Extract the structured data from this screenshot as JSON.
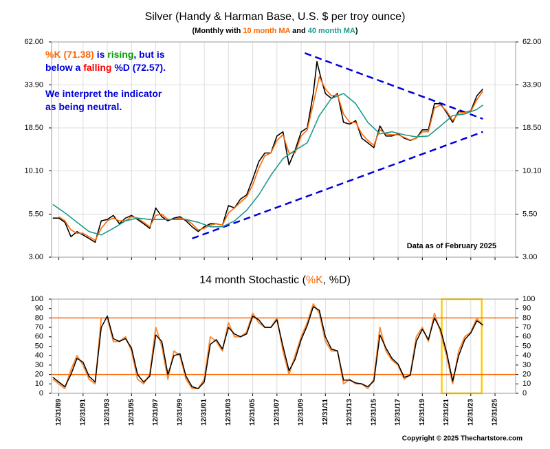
{
  "chart_data": [
    {
      "type": "line",
      "title": "Silver (Handy & Harman Base, U.S. $ per troy ounce)",
      "subtitle": [
        {
          "text": "(Monthly with ",
          "color": "#000000"
        },
        {
          "text": "10 month MA",
          "color": "#ff6600"
        },
        {
          "text": " and ",
          "color": "#000000"
        },
        {
          "text": "40 month MA",
          "color": "#1a9a8a"
        },
        {
          "text": ")",
          "color": "#000000"
        }
      ],
      "annotation_lines": [
        [
          {
            "text": "%K (71.38)",
            "color": "#ff6600"
          },
          {
            "text": " is ",
            "color": "#0000dd"
          },
          {
            "text": "rising",
            "color": "#00a000"
          },
          {
            "text": ", but is",
            "color": "#0000dd"
          }
        ],
        [
          {
            "text": "below a ",
            "color": "#0000dd"
          },
          {
            "text": "falling",
            "color": "#ff0000"
          },
          {
            "text": " %D (72.57).",
            "color": "#0000dd"
          }
        ],
        [],
        [
          {
            "text": "We interpret the indicator",
            "color": "#0000dd"
          }
        ],
        [
          {
            "text": "as being neutral.",
            "color": "#0000dd"
          }
        ]
      ],
      "note": "Data as of February 2025",
      "log_scale": true,
      "grid": true,
      "xlim": [
        1989.4,
        2027.7
      ],
      "ylim": [
        3,
        62
      ],
      "yticks": [
        {
          "value": 62,
          "label": "62.00"
        },
        {
          "value": 33.9,
          "label": "33.90"
        },
        {
          "value": 18.5,
          "label": "18.50"
        },
        {
          "value": 10.1,
          "label": "10.10"
        },
        {
          "value": 5.5,
          "label": "5.50"
        },
        {
          "value": 3,
          "label": "3.00"
        }
      ],
      "series": [
        {
          "color": "#000000",
          "width": 1.6,
          "x": [
            1989.5,
            1990,
            1990.5,
            1991,
            1991.5,
            1992,
            1992.5,
            1993,
            1993.5,
            1994,
            1994.5,
            1995,
            1995.5,
            1996,
            1996.5,
            1997,
            1997.5,
            1998,
            1998.5,
            1999,
            1999.5,
            2000,
            2000.5,
            2001,
            2001.5,
            2002,
            2002.5,
            2003,
            2003.5,
            2004,
            2004.5,
            2005,
            2005.5,
            2006,
            2006.5,
            2007,
            2007.5,
            2008,
            2008.5,
            2009,
            2009.5,
            2010,
            2010.5,
            2011,
            2011.3,
            2011.6,
            2012,
            2012.5,
            2013,
            2013.5,
            2014,
            2014.5,
            2015,
            2015.5,
            2016,
            2016.5,
            2017,
            2017.5,
            2018,
            2018.5,
            2019,
            2019.5,
            2020,
            2020.5,
            2021,
            2021.5,
            2022,
            2022.5,
            2023,
            2023.5,
            2024,
            2024.5,
            2025
          ],
          "values": [
            5.2,
            5.2,
            4.9,
            4.0,
            4.3,
            4.1,
            3.9,
            3.7,
            5.0,
            5.1,
            5.4,
            4.8,
            5.2,
            5.4,
            5.1,
            4.8,
            4.5,
            6.0,
            5.3,
            5.0,
            5.2,
            5.3,
            5.0,
            4.6,
            4.3,
            4.6,
            4.8,
            4.8,
            4.7,
            6.2,
            6.0,
            6.8,
            7.2,
            9.0,
            11.5,
            13.0,
            13.0,
            16.5,
            17.5,
            11.0,
            13.5,
            17.5,
            18.5,
            30.0,
            47.0,
            38.0,
            30.0,
            28.0,
            30.0,
            20.0,
            19.5,
            20.5,
            16.0,
            15.0,
            14.0,
            19.0,
            16.5,
            16.5,
            17.0,
            16.0,
            15.5,
            16.0,
            18.0,
            18.0,
            26.0,
            26.0,
            23.0,
            20.0,
            23.5,
            23.0,
            23.5,
            29.0,
            32.0
          ]
        },
        {
          "color": "#ff6600",
          "width": 1.6,
          "x": [
            1990,
            1990.5,
            1991,
            1991.5,
            1992,
            1992.5,
            1993,
            1993.5,
            1994,
            1994.5,
            1995,
            1995.5,
            1996,
            1996.5,
            1997,
            1997.5,
            1998,
            1998.5,
            1999,
            1999.5,
            2000,
            2000.5,
            2001,
            2001.5,
            2002,
            2002.5,
            2003,
            2003.5,
            2004,
            2004.5,
            2005,
            2005.5,
            2006,
            2006.5,
            2007,
            2007.5,
            2008,
            2008.5,
            2009,
            2009.5,
            2010,
            2010.5,
            2011,
            2011.5,
            2012,
            2012.5,
            2013,
            2013.5,
            2014,
            2014.5,
            2015,
            2015.5,
            2016,
            2016.5,
            2017,
            2017.5,
            2018,
            2018.5,
            2019,
            2019.5,
            2020,
            2020.5,
            2021,
            2021.5,
            2022,
            2022.5,
            2023,
            2023.5,
            2024,
            2024.5,
            2025
          ],
          "values": [
            5.3,
            5.0,
            4.4,
            4.2,
            4.2,
            4.0,
            3.8,
            4.5,
            5.0,
            5.2,
            5.0,
            5.0,
            5.3,
            5.2,
            4.9,
            4.6,
            5.4,
            5.5,
            5.1,
            5.1,
            5.2,
            5.1,
            4.8,
            4.4,
            4.5,
            4.7,
            4.8,
            4.7,
            5.6,
            6.0,
            6.5,
            7.0,
            8.3,
            10.5,
            12.5,
            13.0,
            15.5,
            16.8,
            13.0,
            13.0,
            16.5,
            18.0,
            26.0,
            38.0,
            32.0,
            29.0,
            29.5,
            22.5,
            20.0,
            20.0,
            17.0,
            15.5,
            14.5,
            18.0,
            17.0,
            16.8,
            16.8,
            16.2,
            15.6,
            16.0,
            17.5,
            17.5,
            24.5,
            25.5,
            23.5,
            20.5,
            22.8,
            23.0,
            23.3,
            27.5,
            31.0
          ]
        },
        {
          "color": "#1a9a8a",
          "width": 1.6,
          "x": [
            1989.5,
            1990.5,
            1991.5,
            1992.5,
            1993.5,
            1994.5,
            1995.5,
            1996.5,
            1997.5,
            1998.5,
            1999.5,
            2000.5,
            2001.5,
            2002.5,
            2003.5,
            2004.5,
            2005.5,
            2006.5,
            2007.5,
            2008.5,
            2009.5,
            2010.5,
            2011.5,
            2012.5,
            2013.5,
            2014.5,
            2015.5,
            2016.5,
            2017.5,
            2018.5,
            2019.5,
            2020.5,
            2021.5,
            2022.5,
            2023.5,
            2024.5,
            2025
          ],
          "values": [
            6.3,
            5.6,
            4.9,
            4.3,
            4.1,
            4.5,
            5.0,
            5.2,
            5.1,
            5.1,
            5.1,
            5.1,
            4.9,
            4.6,
            4.6,
            5.0,
            5.8,
            7.2,
            9.5,
            12.0,
            13.5,
            15.0,
            22.0,
            28.0,
            30.0,
            26.0,
            20.0,
            17.0,
            17.5,
            16.8,
            16.3,
            16.5,
            19.0,
            22.0,
            22.5,
            24.0,
            25.5
          ]
        }
      ],
      "trend_lines": [
        {
          "color": "#0000dd",
          "x": [
            2001,
            2025
          ],
          "values": [
            3.9,
            17.5
          ]
        },
        {
          "color": "#0000dd",
          "x": [
            2010.3,
            2025
          ],
          "values": [
            53,
            21
          ]
        }
      ]
    },
    {
      "type": "line",
      "title": [
        {
          "text": "14 month Stochastic (",
          "color": "#000000"
        },
        {
          "text": "%K",
          "color": "#ff6600"
        },
        {
          "text": ", %D)",
          "color": "#000000"
        }
      ],
      "copyright": "Copyright © 2025 Thechartstore.com",
      "grid": true,
      "xlim": [
        1989.4,
        2027.7
      ],
      "xticks": [
        {
          "value": 1990,
          "label": "12/31/89"
        },
        {
          "value": 1992,
          "label": "12/31/91"
        },
        {
          "value": 1994,
          "label": "12/31/93"
        },
        {
          "value": 1996,
          "label": "12/31/95"
        },
        {
          "value": 1998,
          "label": "12/31/97"
        },
        {
          "value": 2000,
          "label": "12/31/99"
        },
        {
          "value": 2002,
          "label": "12/31/01"
        },
        {
          "value": 2004,
          "label": "12/31/03"
        },
        {
          "value": 2006,
          "label": "12/31/05"
        },
        {
          "value": 2008,
          "label": "12/31/07"
        },
        {
          "value": 2010,
          "label": "12/31/09"
        },
        {
          "value": 2012,
          "label": "12/31/11"
        },
        {
          "value": 2014,
          "label": "12/31/13"
        },
        {
          "value": 2016,
          "label": "12/31/15"
        },
        {
          "value": 2018,
          "label": "12/31/17"
        },
        {
          "value": 2020,
          "label": "12/31/19"
        },
        {
          "value": 2022,
          "label": "12/31/21"
        },
        {
          "value": 2024,
          "label": "12/31/23"
        },
        {
          "value": 2026,
          "label": "12/31/25"
        }
      ],
      "ylim": [
        0,
        100
      ],
      "yticks": [
        0,
        10,
        20,
        30,
        40,
        50,
        60,
        70,
        80,
        90,
        100
      ],
      "ref_lines": {
        "values": [
          20,
          80
        ],
        "color": "#ff6600"
      },
      "highlight": {
        "x": [
          2021.6,
          2024.9
        ],
        "color": "#ffcc00"
      },
      "series": [
        {
          "color": "#ff8c33",
          "width": 2,
          "x": [
            1989.5,
            1990,
            1990.5,
            1991,
            1991.5,
            1992,
            1992.5,
            1993,
            1993.5,
            1994,
            1994.5,
            1995,
            1995.5,
            1996,
            1996.5,
            1997,
            1997.5,
            1998,
            1998.5,
            1999,
            1999.5,
            2000,
            2000.5,
            2001,
            2001.5,
            2002,
            2002.5,
            2003,
            2003.5,
            2004,
            2004.5,
            2005,
            2005.5,
            2006,
            2006.5,
            2007,
            2007.5,
            2008,
            2008.5,
            2009,
            2009.5,
            2010,
            2010.5,
            2011,
            2011.5,
            2012,
            2012.5,
            2013,
            2013.5,
            2014,
            2014.5,
            2015,
            2015.5,
            2016,
            2016.5,
            2017,
            2017.5,
            2018,
            2018.5,
            2019,
            2019.5,
            2020,
            2020.5,
            2021,
            2021.5,
            2022,
            2022.5,
            2023,
            2023.5,
            2024,
            2024.5,
            2025
          ],
          "values": [
            15,
            10,
            5,
            25,
            40,
            30,
            15,
            10,
            80,
            80,
            55,
            55,
            60,
            45,
            15,
            10,
            20,
            70,
            50,
            15,
            45,
            40,
            15,
            5,
            5,
            15,
            60,
            55,
            45,
            75,
            60,
            60,
            65,
            85,
            75,
            70,
            70,
            80,
            45,
            20,
            40,
            60,
            75,
            95,
            85,
            55,
            45,
            45,
            10,
            15,
            10,
            10,
            5,
            15,
            70,
            45,
            35,
            30,
            15,
            20,
            60,
            70,
            55,
            85,
            65,
            40,
            10,
            45,
            60,
            65,
            80,
            71.38
          ]
        },
        {
          "color": "#000000",
          "width": 1.5,
          "x": [
            1989.5,
            1990,
            1990.5,
            1991,
            1991.5,
            1992,
            1992.5,
            1993,
            1993.5,
            1994,
            1994.5,
            1995,
            1995.5,
            1996,
            1996.5,
            1997,
            1997.5,
            1998,
            1998.5,
            1999,
            1999.5,
            2000,
            2000.5,
            2001,
            2001.5,
            2002,
            2002.5,
            2003,
            2003.5,
            2004,
            2004.5,
            2005,
            2005.5,
            2006,
            2006.5,
            2007,
            2007.5,
            2008,
            2008.5,
            2009,
            2009.5,
            2010,
            2010.5,
            2011,
            2011.5,
            2012,
            2012.5,
            2013,
            2013.5,
            2014,
            2014.5,
            2015,
            2015.5,
            2016,
            2016.5,
            2017,
            2017.5,
            2018,
            2018.5,
            2019,
            2019.5,
            2020,
            2020.5,
            2021,
            2021.5,
            2022,
            2022.5,
            2023,
            2023.5,
            2024,
            2024.5,
            2025
          ],
          "values": [
            17,
            12,
            7,
            20,
            37,
            33,
            18,
            12,
            70,
            82,
            58,
            55,
            58,
            48,
            20,
            12,
            18,
            62,
            55,
            20,
            40,
            42,
            18,
            7,
            5,
            12,
            52,
            57,
            47,
            70,
            63,
            60,
            63,
            82,
            78,
            70,
            70,
            78,
            50,
            24,
            36,
            57,
            72,
            92,
            88,
            60,
            47,
            45,
            14,
            14,
            11,
            10,
            7,
            13,
            62,
            48,
            37,
            31,
            17,
            19,
            55,
            68,
            57,
            80,
            68,
            44,
            13,
            40,
            57,
            64,
            77,
            72.57
          ]
        }
      ]
    }
  ]
}
